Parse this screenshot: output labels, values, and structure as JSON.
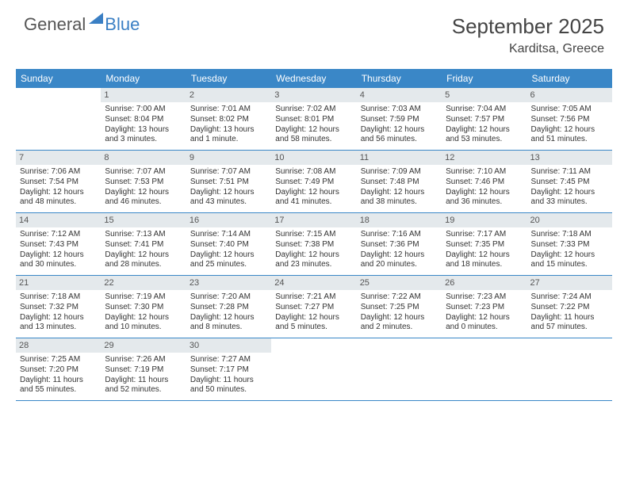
{
  "logo": {
    "left": "General",
    "right": "Blue"
  },
  "title": "September 2025",
  "location": "Karditsa, Greece",
  "day_headers": [
    "Sunday",
    "Monday",
    "Tuesday",
    "Wednesday",
    "Thursday",
    "Friday",
    "Saturday"
  ],
  "colors": {
    "header_bg": "#3a87c7",
    "daynum_bg": "#e4e9ec",
    "logo_blue": "#3a7fc4"
  },
  "weeks": [
    [
      null,
      {
        "n": "1",
        "sr": "Sunrise: 7:00 AM",
        "ss": "Sunset: 8:04 PM",
        "d1": "Daylight: 13 hours",
        "d2": "and 3 minutes."
      },
      {
        "n": "2",
        "sr": "Sunrise: 7:01 AM",
        "ss": "Sunset: 8:02 PM",
        "d1": "Daylight: 13 hours",
        "d2": "and 1 minute."
      },
      {
        "n": "3",
        "sr": "Sunrise: 7:02 AM",
        "ss": "Sunset: 8:01 PM",
        "d1": "Daylight: 12 hours",
        "d2": "and 58 minutes."
      },
      {
        "n": "4",
        "sr": "Sunrise: 7:03 AM",
        "ss": "Sunset: 7:59 PM",
        "d1": "Daylight: 12 hours",
        "d2": "and 56 minutes."
      },
      {
        "n": "5",
        "sr": "Sunrise: 7:04 AM",
        "ss": "Sunset: 7:57 PM",
        "d1": "Daylight: 12 hours",
        "d2": "and 53 minutes."
      },
      {
        "n": "6",
        "sr": "Sunrise: 7:05 AM",
        "ss": "Sunset: 7:56 PM",
        "d1": "Daylight: 12 hours",
        "d2": "and 51 minutes."
      }
    ],
    [
      {
        "n": "7",
        "sr": "Sunrise: 7:06 AM",
        "ss": "Sunset: 7:54 PM",
        "d1": "Daylight: 12 hours",
        "d2": "and 48 minutes."
      },
      {
        "n": "8",
        "sr": "Sunrise: 7:07 AM",
        "ss": "Sunset: 7:53 PM",
        "d1": "Daylight: 12 hours",
        "d2": "and 46 minutes."
      },
      {
        "n": "9",
        "sr": "Sunrise: 7:07 AM",
        "ss": "Sunset: 7:51 PM",
        "d1": "Daylight: 12 hours",
        "d2": "and 43 minutes."
      },
      {
        "n": "10",
        "sr": "Sunrise: 7:08 AM",
        "ss": "Sunset: 7:49 PM",
        "d1": "Daylight: 12 hours",
        "d2": "and 41 minutes."
      },
      {
        "n": "11",
        "sr": "Sunrise: 7:09 AM",
        "ss": "Sunset: 7:48 PM",
        "d1": "Daylight: 12 hours",
        "d2": "and 38 minutes."
      },
      {
        "n": "12",
        "sr": "Sunrise: 7:10 AM",
        "ss": "Sunset: 7:46 PM",
        "d1": "Daylight: 12 hours",
        "d2": "and 36 minutes."
      },
      {
        "n": "13",
        "sr": "Sunrise: 7:11 AM",
        "ss": "Sunset: 7:45 PM",
        "d1": "Daylight: 12 hours",
        "d2": "and 33 minutes."
      }
    ],
    [
      {
        "n": "14",
        "sr": "Sunrise: 7:12 AM",
        "ss": "Sunset: 7:43 PM",
        "d1": "Daylight: 12 hours",
        "d2": "and 30 minutes."
      },
      {
        "n": "15",
        "sr": "Sunrise: 7:13 AM",
        "ss": "Sunset: 7:41 PM",
        "d1": "Daylight: 12 hours",
        "d2": "and 28 minutes."
      },
      {
        "n": "16",
        "sr": "Sunrise: 7:14 AM",
        "ss": "Sunset: 7:40 PM",
        "d1": "Daylight: 12 hours",
        "d2": "and 25 minutes."
      },
      {
        "n": "17",
        "sr": "Sunrise: 7:15 AM",
        "ss": "Sunset: 7:38 PM",
        "d1": "Daylight: 12 hours",
        "d2": "and 23 minutes."
      },
      {
        "n": "18",
        "sr": "Sunrise: 7:16 AM",
        "ss": "Sunset: 7:36 PM",
        "d1": "Daylight: 12 hours",
        "d2": "and 20 minutes."
      },
      {
        "n": "19",
        "sr": "Sunrise: 7:17 AM",
        "ss": "Sunset: 7:35 PM",
        "d1": "Daylight: 12 hours",
        "d2": "and 18 minutes."
      },
      {
        "n": "20",
        "sr": "Sunrise: 7:18 AM",
        "ss": "Sunset: 7:33 PM",
        "d1": "Daylight: 12 hours",
        "d2": "and 15 minutes."
      }
    ],
    [
      {
        "n": "21",
        "sr": "Sunrise: 7:18 AM",
        "ss": "Sunset: 7:32 PM",
        "d1": "Daylight: 12 hours",
        "d2": "and 13 minutes."
      },
      {
        "n": "22",
        "sr": "Sunrise: 7:19 AM",
        "ss": "Sunset: 7:30 PM",
        "d1": "Daylight: 12 hours",
        "d2": "and 10 minutes."
      },
      {
        "n": "23",
        "sr": "Sunrise: 7:20 AM",
        "ss": "Sunset: 7:28 PM",
        "d1": "Daylight: 12 hours",
        "d2": "and 8 minutes."
      },
      {
        "n": "24",
        "sr": "Sunrise: 7:21 AM",
        "ss": "Sunset: 7:27 PM",
        "d1": "Daylight: 12 hours",
        "d2": "and 5 minutes."
      },
      {
        "n": "25",
        "sr": "Sunrise: 7:22 AM",
        "ss": "Sunset: 7:25 PM",
        "d1": "Daylight: 12 hours",
        "d2": "and 2 minutes."
      },
      {
        "n": "26",
        "sr": "Sunrise: 7:23 AM",
        "ss": "Sunset: 7:23 PM",
        "d1": "Daylight: 12 hours",
        "d2": "and 0 minutes."
      },
      {
        "n": "27",
        "sr": "Sunrise: 7:24 AM",
        "ss": "Sunset: 7:22 PM",
        "d1": "Daylight: 11 hours",
        "d2": "and 57 minutes."
      }
    ],
    [
      {
        "n": "28",
        "sr": "Sunrise: 7:25 AM",
        "ss": "Sunset: 7:20 PM",
        "d1": "Daylight: 11 hours",
        "d2": "and 55 minutes."
      },
      {
        "n": "29",
        "sr": "Sunrise: 7:26 AM",
        "ss": "Sunset: 7:19 PM",
        "d1": "Daylight: 11 hours",
        "d2": "and 52 minutes."
      },
      {
        "n": "30",
        "sr": "Sunrise: 7:27 AM",
        "ss": "Sunset: 7:17 PM",
        "d1": "Daylight: 11 hours",
        "d2": "and 50 minutes."
      },
      null,
      null,
      null,
      null
    ]
  ]
}
